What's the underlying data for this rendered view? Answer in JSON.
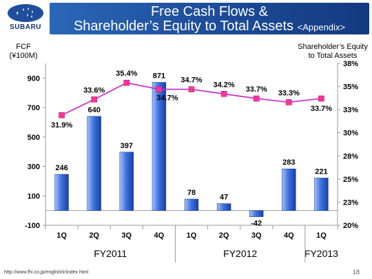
{
  "header": {
    "title_line1": "Free Cash Flows &",
    "title_line2": "Shareholder’s Equity to Total Assets",
    "title_suffix": "<Appendix>",
    "logo_text": "SUBARU"
  },
  "footer": {
    "url": "http://www.fhi.co.jp/english/ir/index.html",
    "page": "18"
  },
  "colors": {
    "bar": "#3f74e0",
    "line": "#cc33cc",
    "marker": "#ff3399"
  },
  "chart_data": {
    "type": "bar",
    "left_axis_title": [
      "FCF",
      "(¥100M)"
    ],
    "right_axis_title": [
      "Shareholder’s Equity",
      "to Total Assets"
    ],
    "categories": [
      "1Q",
      "2Q",
      "3Q",
      "4Q",
      "1Q",
      "2Q",
      "3Q",
      "4Q",
      "1Q"
    ],
    "groups": [
      {
        "label": "FY2011",
        "start": 0,
        "end": 3
      },
      {
        "label": "FY2012",
        "start": 4,
        "end": 7
      },
      {
        "label": "FY2013",
        "start": 8,
        "end": 8
      }
    ],
    "series": [
      {
        "type": "bar",
        "axis": "left",
        "values": [
          246,
          640,
          397,
          871,
          78,
          47,
          -42,
          283,
          221
        ],
        "labels": [
          "246",
          "640",
          "397",
          "871",
          "78",
          "47",
          "-42",
          "283",
          "221"
        ]
      },
      {
        "type": "line",
        "axis": "right",
        "values": [
          31.9,
          33.6,
          35.4,
          34.7,
          34.7,
          34.2,
          33.7,
          33.3,
          33.7
        ],
        "labels": [
          "31.9%",
          "33.6%",
          "35.4%",
          "34.7%",
          "34.7%",
          "34.2%",
          "33.7%",
          "33.3%",
          "33.7%"
        ]
      }
    ],
    "left_ticks": [
      "-100",
      "100",
      "300",
      "500",
      "700",
      "900"
    ],
    "left_tick_values": [
      -100,
      100,
      300,
      500,
      700,
      900
    ],
    "ylim": [
      -100,
      1000
    ],
    "right_ticks": [
      "20%",
      "23%",
      "25%",
      "28%",
      "30%",
      "33%",
      "35%",
      "38%"
    ],
    "right_tick_values": [
      20,
      22.5,
      25,
      27.5,
      30,
      32.5,
      35,
      37.5
    ],
    "ylim_right": [
      20,
      37.5
    ]
  }
}
